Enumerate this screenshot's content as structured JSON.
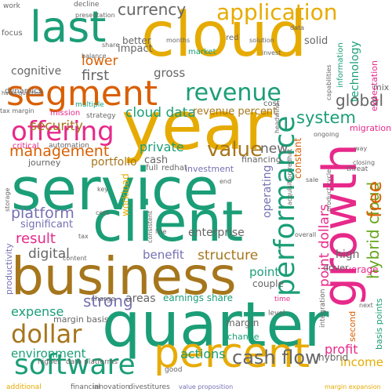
{
  "colors": {
    "teal": "#1b9e77",
    "gold": "#e6ab02",
    "orange": "#d95f02",
    "purple": "#7570b3",
    "magenta": "#e7298a",
    "green": "#66a61e",
    "brown": "#a6761d",
    "gray": "#666666"
  },
  "words": [
    {
      "text": "cloud",
      "color": "gold"
    },
    {
      "text": "year",
      "color": "gold"
    },
    {
      "text": "service",
      "color": "teal"
    },
    {
      "text": "quarter",
      "color": "teal"
    },
    {
      "text": "client",
      "color": "teal"
    },
    {
      "text": "business",
      "color": "brown"
    },
    {
      "text": "growth",
      "color": "magenta"
    },
    {
      "text": "percent",
      "color": "gold"
    },
    {
      "text": "performance",
      "color": "teal"
    },
    {
      "text": "segment",
      "color": "orange"
    },
    {
      "text": "last",
      "color": "teal"
    },
    {
      "text": "software",
      "color": "teal"
    },
    {
      "text": "offering",
      "color": "magenta"
    },
    {
      "text": "revenue",
      "color": "teal"
    },
    {
      "text": "application",
      "color": "gold"
    },
    {
      "text": "dollar",
      "color": "brown"
    },
    {
      "text": "currency",
      "color": "gray"
    },
    {
      "text": "management",
      "color": "orange"
    },
    {
      "text": "value",
      "color": "brown"
    },
    {
      "text": "platform",
      "color": "purple"
    },
    {
      "text": "hybrid cloud",
      "color": "green"
    },
    {
      "text": "point dollars",
      "color": "magenta"
    },
    {
      "text": "cash flow",
      "color": "gray"
    },
    {
      "text": "free",
      "color": "orange"
    },
    {
      "text": "lower",
      "color": "orange"
    },
    {
      "text": "system",
      "color": "teal"
    },
    {
      "text": "global",
      "color": "gray"
    },
    {
      "text": "security",
      "color": "brown"
    },
    {
      "text": "cloud data",
      "color": "teal"
    },
    {
      "text": "first",
      "color": "gray"
    },
    {
      "text": "result",
      "color": "magenta"
    },
    {
      "text": "strong",
      "color": "purple"
    },
    {
      "text": "digital",
      "color": "gray"
    },
    {
      "text": "structure",
      "color": "brown"
    },
    {
      "text": "expense",
      "color": "teal"
    },
    {
      "text": "private",
      "color": "teal"
    },
    {
      "text": "benefit",
      "color": "purple"
    },
    {
      "text": "new",
      "color": "gray"
    },
    {
      "text": "actions",
      "color": "teal"
    },
    {
      "text": "environment",
      "color": "teal"
    },
    {
      "text": "portfolio",
      "color": "brown"
    },
    {
      "text": "gross",
      "color": "gray"
    },
    {
      "text": "cognitive",
      "color": "gray"
    },
    {
      "text": "enterprise",
      "color": "gray"
    },
    {
      "text": "operating",
      "color": "purple"
    },
    {
      "text": "areas",
      "color": "gray"
    },
    {
      "text": "point",
      "color": "teal"
    },
    {
      "text": "profit",
      "color": "magenta"
    },
    {
      "text": "income",
      "color": "gold"
    },
    {
      "text": "technology",
      "color": "teal"
    },
    {
      "text": "impact",
      "color": "gray"
    },
    {
      "text": "revenue percent",
      "color": "brown"
    },
    {
      "text": "cash",
      "color": "gray"
    },
    {
      "text": "high",
      "color": "gray"
    },
    {
      "text": "significant",
      "color": "purple"
    },
    {
      "text": "earnings share",
      "color": "teal"
    },
    {
      "text": "leverage",
      "color": "magenta"
    },
    {
      "text": "better",
      "color": "gray"
    },
    {
      "text": "journey",
      "color": "gray"
    },
    {
      "text": "mix",
      "color": "gray"
    },
    {
      "text": "expectation",
      "color": "magenta"
    },
    {
      "text": "information",
      "color": "teal"
    },
    {
      "text": "migration",
      "color": "magenta"
    },
    {
      "text": "financing",
      "color": "gray"
    },
    {
      "text": "investment",
      "color": "purple"
    },
    {
      "text": "workload",
      "color": "gold"
    },
    {
      "text": "productivity",
      "color": "purple"
    },
    {
      "text": "couple",
      "color": "gray"
    },
    {
      "text": "hybrid",
      "color": "gray"
    },
    {
      "text": "margin",
      "color": "gray"
    },
    {
      "text": "change",
      "color": "teal"
    },
    {
      "text": "margin basis",
      "color": "gray"
    },
    {
      "text": "basis points",
      "color": "teal"
    },
    {
      "text": "second",
      "color": "orange"
    },
    {
      "text": "driver",
      "color": "gray"
    },
    {
      "text": "constant",
      "color": "orange"
    },
    {
      "text": "solid",
      "color": "gray"
    },
    {
      "text": "focus",
      "color": "gray"
    },
    {
      "text": "market",
      "color": "teal"
    },
    {
      "text": "dynamics",
      "color": "gray"
    },
    {
      "text": "critical",
      "color": "magenta"
    },
    {
      "text": "automation",
      "color": "gray"
    },
    {
      "text": "mission",
      "color": "magenta"
    },
    {
      "text": "strategy",
      "color": "gray"
    },
    {
      "text": "multiple",
      "color": "teal"
    },
    {
      "text": "cost",
      "color": "gray"
    },
    {
      "text": "red",
      "color": "gray"
    },
    {
      "text": "full",
      "color": "gray"
    },
    {
      "text": "redhat",
      "color": "gray"
    },
    {
      "text": "data platforms",
      "color": "gray"
    },
    {
      "text": "financial",
      "color": "gray"
    },
    {
      "text": "innovation",
      "color": "gray"
    },
    {
      "text": "divestitures",
      "color": "gray"
    },
    {
      "text": "value proposition",
      "color": "purple"
    },
    {
      "text": "margin expansion",
      "color": "gold"
    },
    {
      "text": "additional",
      "color": "gold"
    },
    {
      "text": "good",
      "color": "gray"
    },
    {
      "text": "content",
      "color": "gray"
    },
    {
      "text": "higher",
      "color": "gray"
    },
    {
      "text": "charge",
      "color": "gray"
    },
    {
      "text": "integration",
      "color": "gray"
    },
    {
      "text": "level",
      "color": "gray"
    },
    {
      "text": "time",
      "color": "magenta"
    },
    {
      "text": "next",
      "color": "gray"
    },
    {
      "text": "overall",
      "color": "gray"
    },
    {
      "text": "product cycle",
      "color": "gray"
    },
    {
      "text": "sale",
      "color": "gray"
    },
    {
      "text": "threat",
      "color": "gray"
    },
    {
      "text": "way",
      "color": "gray"
    },
    {
      "text": "closing",
      "color": "gray"
    },
    {
      "text": "ongoing",
      "color": "gray"
    },
    {
      "text": "solution",
      "color": "gray"
    },
    {
      "text": "invest",
      "color": "gray"
    },
    {
      "text": "data",
      "color": "gray"
    },
    {
      "text": "capabilities",
      "color": "gray"
    },
    {
      "text": "acquisition redhat",
      "color": "gray"
    },
    {
      "text": "end",
      "color": "gray"
    },
    {
      "text": "key",
      "color": "gray"
    },
    {
      "text": "cent",
      "color": "gray"
    },
    {
      "text": "consistent",
      "color": "gray"
    },
    {
      "text": "line",
      "color": "gray"
    },
    {
      "text": "tax",
      "color": "gray"
    },
    {
      "text": "tax margin",
      "color": "gray"
    },
    {
      "text": "hat acquisition",
      "color": "gray"
    },
    {
      "text": "balance",
      "color": "gray"
    },
    {
      "text": "share",
      "color": "gray"
    },
    {
      "text": "storage",
      "color": "gray"
    },
    {
      "text": "work",
      "color": "gray"
    },
    {
      "text": "decline",
      "color": "gray"
    },
    {
      "text": "presentation",
      "color": "gray"
    },
    {
      "text": "months",
      "color": "gray"
    },
    {
      "text": "headwind",
      "color": "gray"
    }
  ]
}
